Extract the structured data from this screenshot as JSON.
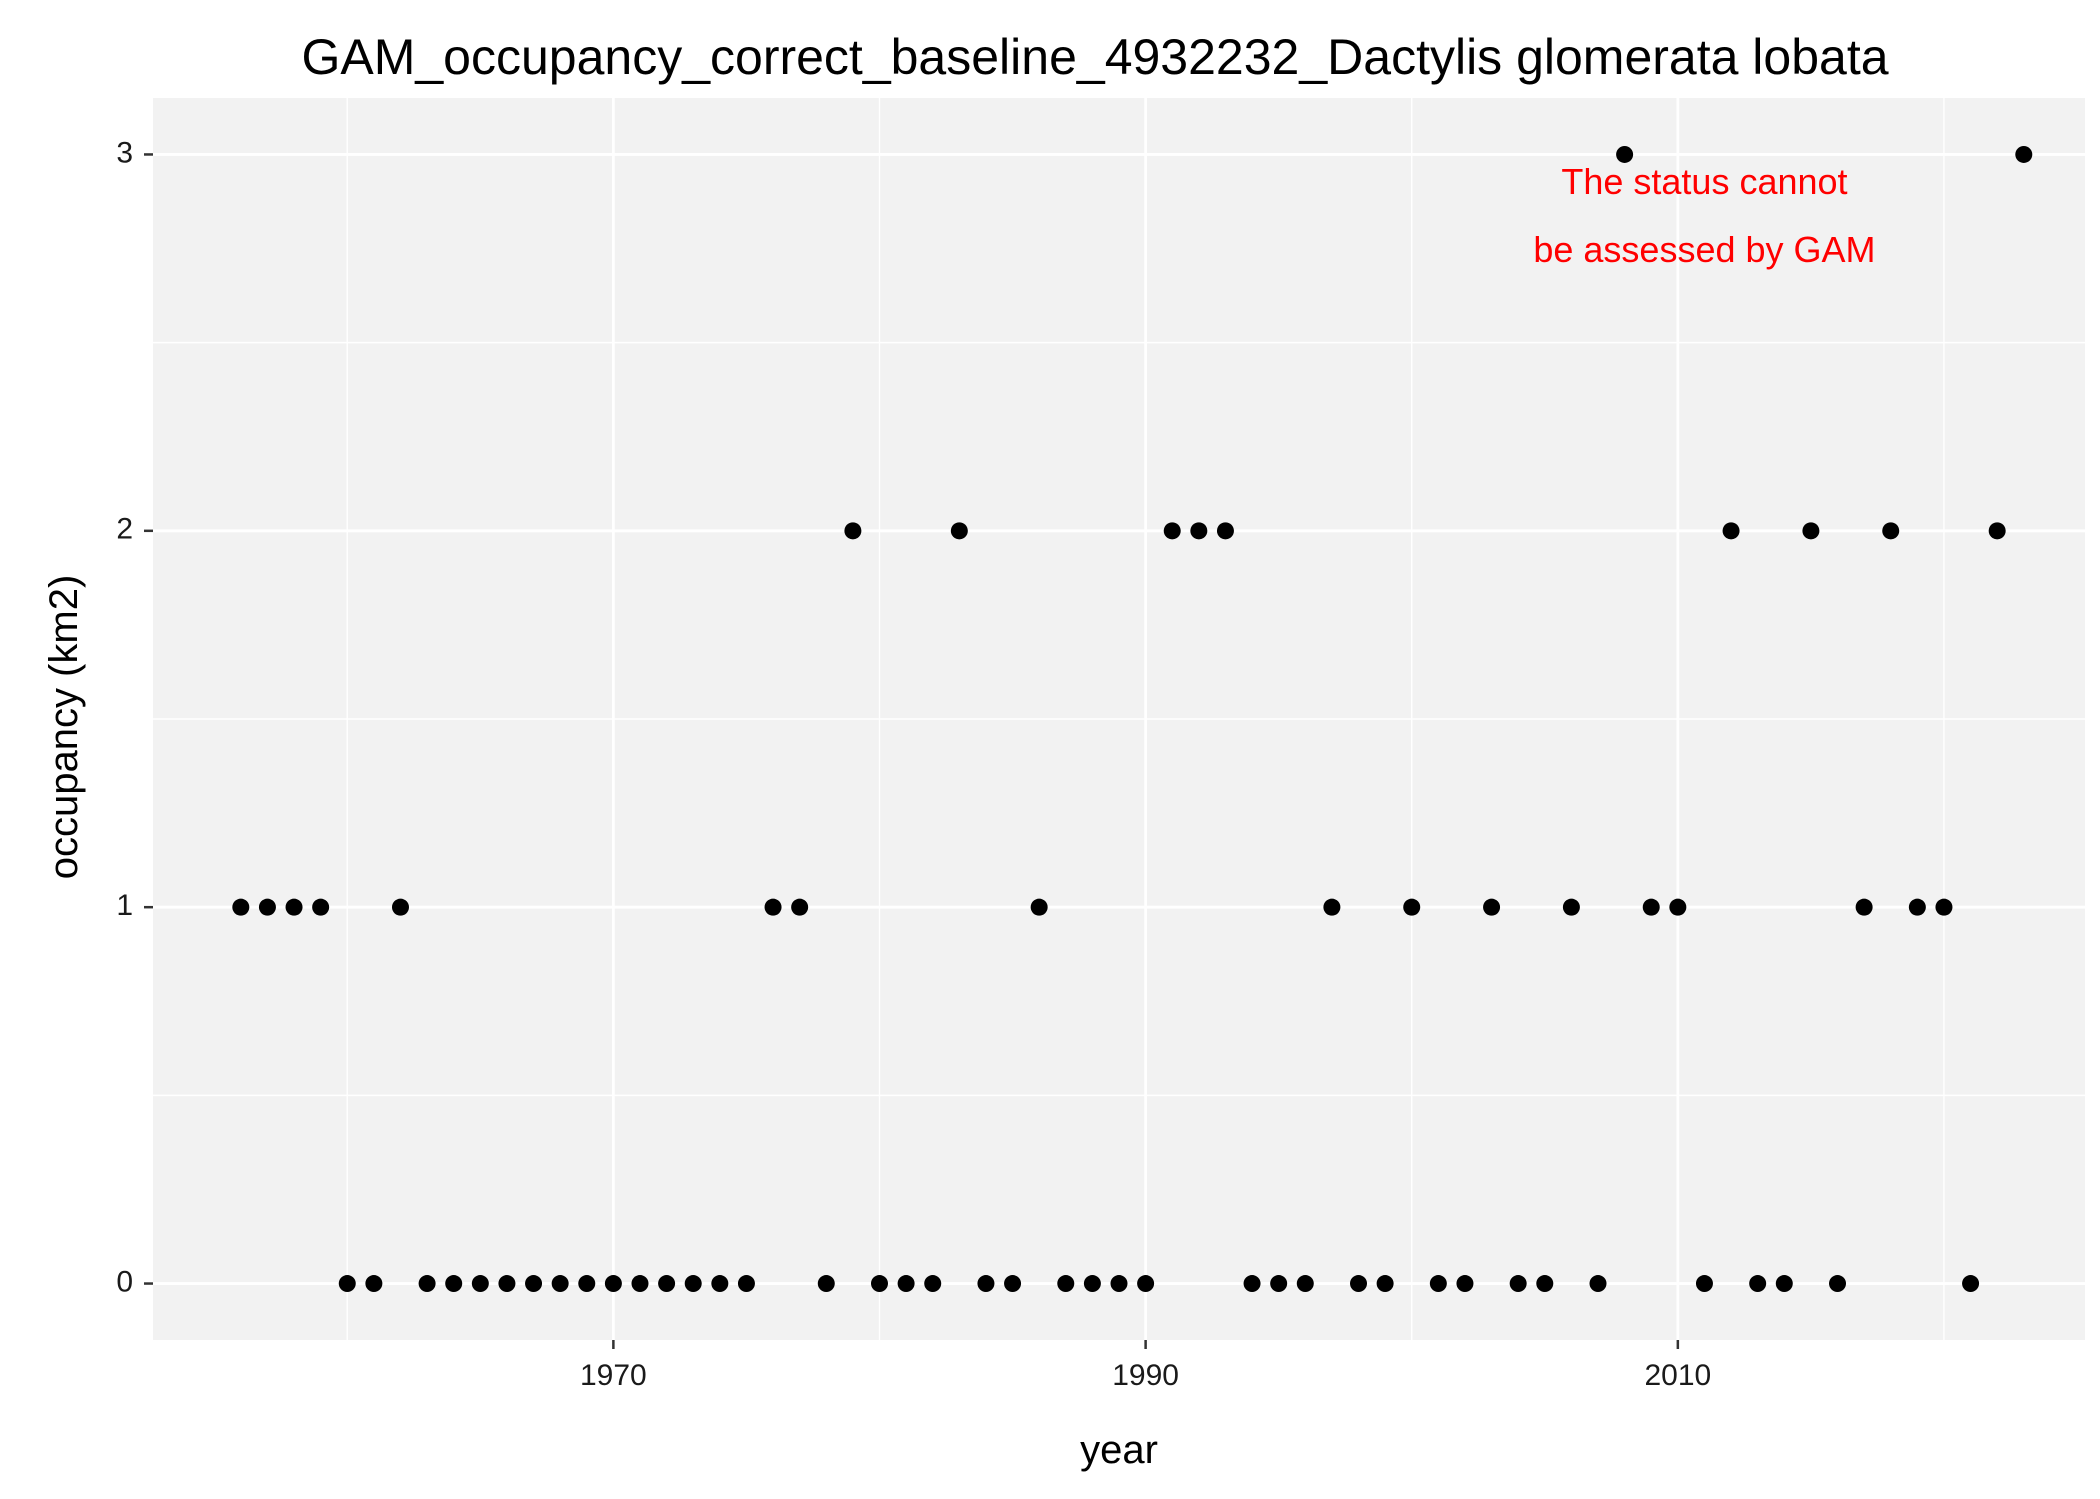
{
  "chart_data": {
    "type": "scatter",
    "title": "GAM_occupancy_correct_baseline_4932232_Dactylis glomerata lobata",
    "xlabel": "year",
    "ylabel": "occupancy (km2)",
    "xlim": [
      1952.7,
      2025.3
    ],
    "ylim": [
      -0.15,
      3.15
    ],
    "x_ticks": [
      1970,
      1990,
      2010
    ],
    "y_ticks": [
      0,
      1,
      2,
      3
    ],
    "grid": true,
    "annotation": {
      "lines": [
        "The status cannot",
        "be assessed by GAM"
      ],
      "color": "#ff0000",
      "x": 2011,
      "y_lines": [
        2.92,
        2.74
      ]
    },
    "points": [
      {
        "x": 1956,
        "y": 1
      },
      {
        "x": 1957,
        "y": 1
      },
      {
        "x": 1958,
        "y": 1
      },
      {
        "x": 1959,
        "y": 1
      },
      {
        "x": 1960,
        "y": 0
      },
      {
        "x": 1961,
        "y": 0
      },
      {
        "x": 1962,
        "y": 1
      },
      {
        "x": 1963,
        "y": 0
      },
      {
        "x": 1964,
        "y": 0
      },
      {
        "x": 1965,
        "y": 0
      },
      {
        "x": 1966,
        "y": 0
      },
      {
        "x": 1967,
        "y": 0
      },
      {
        "x": 1968,
        "y": 0
      },
      {
        "x": 1969,
        "y": 0
      },
      {
        "x": 1970,
        "y": 0
      },
      {
        "x": 1971,
        "y": 0
      },
      {
        "x": 1972,
        "y": 0
      },
      {
        "x": 1973,
        "y": 0
      },
      {
        "x": 1974,
        "y": 0
      },
      {
        "x": 1975,
        "y": 0
      },
      {
        "x": 1976,
        "y": 1
      },
      {
        "x": 1977,
        "y": 1
      },
      {
        "x": 1978,
        "y": 0
      },
      {
        "x": 1979,
        "y": 2
      },
      {
        "x": 1980,
        "y": 0
      },
      {
        "x": 1981,
        "y": 0
      },
      {
        "x": 1982,
        "y": 0
      },
      {
        "x": 1983,
        "y": 2
      },
      {
        "x": 1984,
        "y": 0
      },
      {
        "x": 1985,
        "y": 0
      },
      {
        "x": 1986,
        "y": 1
      },
      {
        "x": 1987,
        "y": 0
      },
      {
        "x": 1988,
        "y": 0
      },
      {
        "x": 1989,
        "y": 0
      },
      {
        "x": 1990,
        "y": 0
      },
      {
        "x": 1991,
        "y": 2
      },
      {
        "x": 1992,
        "y": 2
      },
      {
        "x": 1993,
        "y": 2
      },
      {
        "x": 1994,
        "y": 0
      },
      {
        "x": 1995,
        "y": 0
      },
      {
        "x": 1996,
        "y": 0
      },
      {
        "x": 1997,
        "y": 1
      },
      {
        "x": 1998,
        "y": 0
      },
      {
        "x": 1999,
        "y": 0
      },
      {
        "x": 2000,
        "y": 1
      },
      {
        "x": 2001,
        "y": 0
      },
      {
        "x": 2002,
        "y": 0
      },
      {
        "x": 2003,
        "y": 1
      },
      {
        "x": 2004,
        "y": 0
      },
      {
        "x": 2005,
        "y": 0
      },
      {
        "x": 2006,
        "y": 1
      },
      {
        "x": 2007,
        "y": 0
      },
      {
        "x": 2008,
        "y": 3
      },
      {
        "x": 2009,
        "y": 1
      },
      {
        "x": 2010,
        "y": 1
      },
      {
        "x": 2011,
        "y": 0
      },
      {
        "x": 2012,
        "y": 2
      },
      {
        "x": 2013,
        "y": 0
      },
      {
        "x": 2014,
        "y": 0
      },
      {
        "x": 2015,
        "y": 2
      },
      {
        "x": 2016,
        "y": 0
      },
      {
        "x": 2017,
        "y": 1
      },
      {
        "x": 2018,
        "y": 2
      },
      {
        "x": 2019,
        "y": 1
      },
      {
        "x": 2020,
        "y": 1
      },
      {
        "x": 2021,
        "y": 0
      },
      {
        "x": 2022,
        "y": 2
      },
      {
        "x": 2023,
        "y": 3
      }
    ],
    "colors": {
      "panel": "#f2f2f2",
      "grid_major": "#ffffff",
      "grid_minor": "#ffffff",
      "point": "#000000",
      "tick": "#333333"
    }
  }
}
